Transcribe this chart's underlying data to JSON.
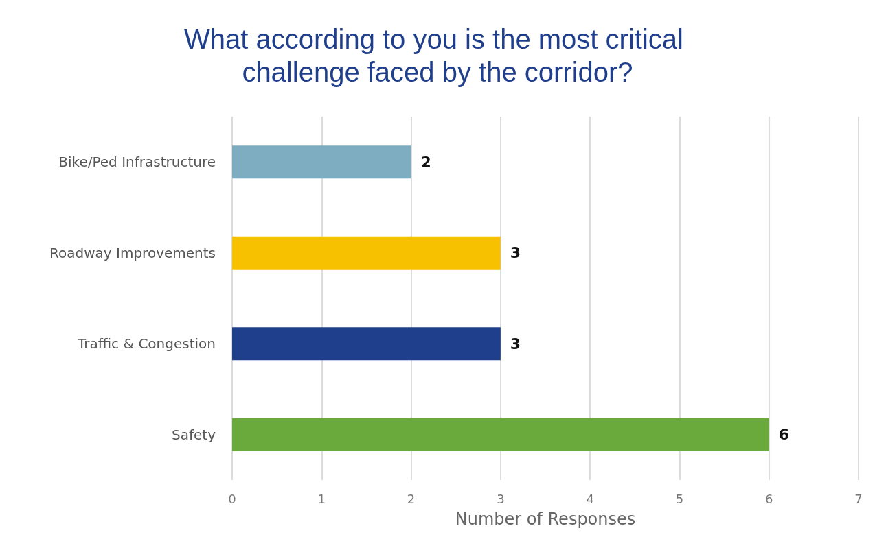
{
  "chart_data": {
    "type": "bar",
    "orientation": "horizontal",
    "title": "What according to you is the most critical challenge faced by the corridor?",
    "categories": [
      "Bike/Ped Infrastructure",
      "Roadway Improvements",
      "Traffic & Congestion",
      "Safety"
    ],
    "values": [
      2,
      3,
      3,
      6
    ],
    "colors": [
      "#7eadc2",
      "#f8c100",
      "#1f3e8c",
      "#6aaa3c"
    ],
    "xlabel": "Number of Responses",
    "xlim": [
      0,
      7
    ],
    "xticks": [
      0,
      1,
      2,
      3,
      4,
      5,
      6,
      7
    ],
    "grid": "x",
    "data_labels": true
  }
}
